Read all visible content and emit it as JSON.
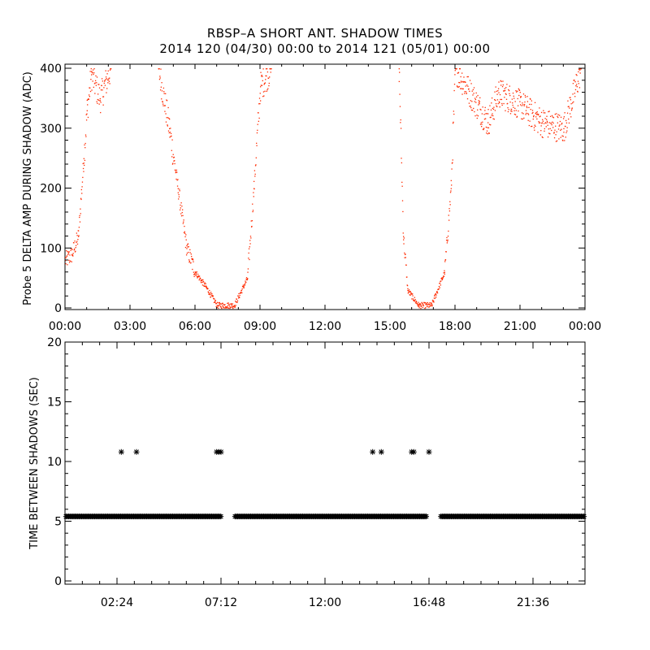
{
  "title_line1": "RBSP–A SHORT ANT. SHADOW TIMES",
  "title_line2": "2014 120 (04/30) 00:00 to 2014 121 (05/01) 00:00",
  "colors": {
    "top_points": "#ff2a00",
    "bottom_points": "#000000",
    "axes": "#000000",
    "background": "#ffffff"
  },
  "chart_data": [
    {
      "type": "scatter",
      "ylabel": "Probe 5 DELTA AMP DURING SHADOW (ADC)",
      "xlabel": "",
      "xlim_hours": [
        0,
        24
      ],
      "ylim": [
        0,
        400
      ],
      "x_tick_labels": [
        "00:00",
        "03:00",
        "06:00",
        "09:00",
        "12:00",
        "15:00",
        "18:00",
        "21:00",
        "00:00"
      ],
      "y_tick_labels": [
        "0",
        "100",
        "200",
        "300",
        "400"
      ],
      "grid": false,
      "marker": "dot",
      "color": "#ff2a00",
      "approx_points": [
        {
          "x": 0.0,
          "y": 80
        },
        {
          "x": 0.3,
          "y": 90
        },
        {
          "x": 0.6,
          "y": 120
        },
        {
          "x": 0.85,
          "y": 250
        },
        {
          "x": 1.0,
          "y": 330
        },
        {
          "x": 1.2,
          "y": 390
        },
        {
          "x": 1.6,
          "y": 350
        },
        {
          "x": 2.1,
          "y": 400
        },
        {
          "x": 4.3,
          "y": 400
        },
        {
          "x": 4.8,
          "y": 300
        },
        {
          "x": 5.2,
          "y": 200
        },
        {
          "x": 5.6,
          "y": 100
        },
        {
          "x": 6.0,
          "y": 60
        },
        {
          "x": 6.5,
          "y": 35
        },
        {
          "x": 7.0,
          "y": 5
        },
        {
          "x": 7.8,
          "y": 5
        },
        {
          "x": 8.4,
          "y": 50
        },
        {
          "x": 8.7,
          "y": 200
        },
        {
          "x": 9.0,
          "y": 370
        },
        {
          "x": 9.5,
          "y": 400
        },
        {
          "x": 15.4,
          "y": 400
        },
        {
          "x": 15.6,
          "y": 120
        },
        {
          "x": 15.8,
          "y": 30
        },
        {
          "x": 16.3,
          "y": 5
        },
        {
          "x": 16.9,
          "y": 5
        },
        {
          "x": 17.5,
          "y": 60
        },
        {
          "x": 17.8,
          "y": 200
        },
        {
          "x": 18.0,
          "y": 400
        },
        {
          "x": 19.5,
          "y": 310
        },
        {
          "x": 20.0,
          "y": 360
        },
        {
          "x": 21.0,
          "y": 340
        },
        {
          "x": 22.0,
          "y": 310
        },
        {
          "x": 23.0,
          "y": 300
        },
        {
          "x": 23.8,
          "y": 400
        }
      ]
    },
    {
      "type": "scatter",
      "ylabel": "TIME BETWEEN SHADOWS (SEC)",
      "xlabel": "",
      "xlim_hours": [
        0,
        24
      ],
      "ylim": [
        0,
        20
      ],
      "x_tick_labels": [
        "02:24",
        "07:12",
        "12:00",
        "16:48",
        "21:36"
      ],
      "y_tick_labels": [
        "0",
        "5",
        "10",
        "15",
        "20"
      ],
      "grid": false,
      "marker": "*",
      "color": "#000000",
      "baseline_value": 5.4,
      "baseline_segments_hours": [
        [
          0.0,
          7.2
        ],
        [
          7.8,
          16.7
        ],
        [
          17.3,
          24.0
        ]
      ],
      "outlier_points": [
        {
          "x": 2.6,
          "y": 10.8
        },
        {
          "x": 3.3,
          "y": 10.8
        },
        {
          "x": 7.0,
          "y": 10.8
        },
        {
          "x": 7.1,
          "y": 10.8
        },
        {
          "x": 7.2,
          "y": 10.8
        },
        {
          "x": 14.2,
          "y": 10.8
        },
        {
          "x": 14.6,
          "y": 10.8
        },
        {
          "x": 16.0,
          "y": 10.8
        },
        {
          "x": 16.1,
          "y": 10.8
        },
        {
          "x": 16.8,
          "y": 10.8
        }
      ]
    }
  ]
}
